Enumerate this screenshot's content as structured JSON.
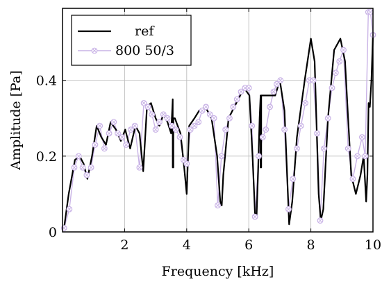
{
  "chart_data": {
    "type": "line",
    "title": "",
    "xlabel": "Frequency [kHz]",
    "ylabel": "Amplitude [Pa]",
    "xlim": [
      0,
      10
    ],
    "ylim": [
      0,
      0.59
    ],
    "grid": true,
    "legend": "top-left",
    "x_ticks": [
      "2",
      "4",
      "6",
      "8",
      "10"
    ],
    "y_ticks": [
      "0",
      "0.2",
      "0.4"
    ],
    "x_tick_values": [
      2,
      4,
      6,
      8,
      10
    ],
    "y_tick_values": [
      0,
      0.2,
      0.4
    ],
    "series": [
      {
        "name": "ref",
        "color": "#000000",
        "marker": "none",
        "x": [
          0.05,
          0.2,
          0.4,
          0.55,
          0.68,
          0.8,
          0.95,
          1.1,
          1.25,
          1.4,
          1.55,
          1.72,
          1.88,
          2.02,
          2.18,
          2.35,
          2.48,
          2.6,
          2.72,
          2.85,
          3.0,
          3.12,
          3.25,
          3.38,
          3.5,
          3.55,
          3.55,
          3.57,
          3.57,
          3.62,
          3.8,
          3.92,
          4.0,
          4.08,
          4.25,
          4.4,
          4.6,
          4.8,
          4.98,
          5.08,
          5.13,
          5.18,
          5.35,
          5.6,
          5.85,
          6.02,
          6.12,
          6.2,
          6.25,
          6.3,
          6.35,
          6.38,
          6.38,
          6.4,
          6.4,
          6.6,
          6.85,
          7.0,
          7.15,
          7.3,
          7.4,
          7.55,
          7.8,
          8.0,
          8.12,
          8.25,
          8.32,
          8.4,
          8.55,
          8.75,
          8.95,
          9.1,
          9.2,
          9.3,
          9.45,
          9.6,
          9.7,
          9.78,
          9.82,
          9.86,
          9.9,
          9.95,
          10.0
        ],
        "y": [
          0.01,
          0.1,
          0.19,
          0.2,
          0.18,
          0.14,
          0.2,
          0.28,
          0.25,
          0.23,
          0.29,
          0.27,
          0.24,
          0.27,
          0.22,
          0.28,
          0.26,
          0.16,
          0.33,
          0.34,
          0.3,
          0.28,
          0.31,
          0.29,
          0.26,
          0.35,
          0.17,
          0.17,
          0.3,
          0.3,
          0.26,
          0.17,
          0.1,
          0.28,
          0.3,
          0.32,
          0.33,
          0.3,
          0.2,
          0.08,
          0.07,
          0.15,
          0.3,
          0.34,
          0.38,
          0.36,
          0.2,
          0.05,
          0.04,
          0.16,
          0.3,
          0.36,
          0.17,
          0.17,
          0.36,
          0.36,
          0.36,
          0.4,
          0.32,
          0.02,
          0.08,
          0.25,
          0.4,
          0.51,
          0.45,
          0.1,
          0.03,
          0.06,
          0.3,
          0.48,
          0.51,
          0.45,
          0.3,
          0.15,
          0.1,
          0.15,
          0.2,
          0.08,
          0.15,
          0.34,
          0.33,
          0.4,
          0.52
        ]
      },
      {
        "name": "800 50/3",
        "color": "#c9b3e6",
        "marker": "circle-x",
        "x": [
          0.05,
          0.22,
          0.38,
          0.52,
          0.65,
          0.78,
          0.92,
          1.05,
          1.2,
          1.35,
          1.5,
          1.65,
          1.78,
          1.92,
          2.05,
          2.2,
          2.33,
          2.48,
          2.62,
          2.75,
          2.88,
          3.0,
          3.12,
          3.25,
          3.38,
          3.52,
          3.65,
          3.78,
          3.9,
          4.0,
          4.12,
          4.25,
          4.38,
          4.5,
          4.62,
          4.75,
          4.88,
          5.0,
          5.12,
          5.25,
          5.38,
          5.5,
          5.62,
          5.75,
          5.88,
          6.0,
          6.1,
          6.2,
          6.32,
          6.45,
          6.55,
          6.68,
          6.8,
          6.9,
          7.02,
          7.15,
          7.28,
          7.42,
          7.55,
          7.68,
          7.82,
          7.95,
          8.08,
          8.2,
          8.3,
          8.42,
          8.55,
          8.68,
          8.8,
          8.92,
          9.05,
          9.2,
          9.35,
          9.5,
          9.65,
          9.75,
          9.85,
          9.92,
          10.0
        ],
        "y": [
          0.01,
          0.06,
          0.17,
          0.2,
          0.17,
          0.15,
          0.17,
          0.23,
          0.28,
          0.22,
          0.26,
          0.29,
          0.26,
          0.25,
          0.23,
          0.27,
          0.28,
          0.17,
          0.34,
          0.33,
          0.31,
          0.27,
          0.29,
          0.31,
          0.3,
          0.28,
          0.27,
          0.25,
          0.19,
          0.18,
          0.27,
          0.28,
          0.29,
          0.32,
          0.33,
          0.31,
          0.3,
          0.07,
          0.2,
          0.27,
          0.3,
          0.33,
          0.35,
          0.37,
          0.38,
          0.38,
          0.28,
          0.04,
          0.2,
          0.25,
          0.27,
          0.33,
          0.37,
          0.39,
          0.4,
          0.27,
          0.06,
          0.14,
          0.22,
          0.28,
          0.34,
          0.4,
          0.4,
          0.26,
          0.03,
          0.22,
          0.3,
          0.38,
          0.42,
          0.45,
          0.48,
          0.22,
          0.14,
          0.2,
          0.25,
          0.2,
          0.58,
          0.58,
          0.52
        ]
      }
    ]
  }
}
